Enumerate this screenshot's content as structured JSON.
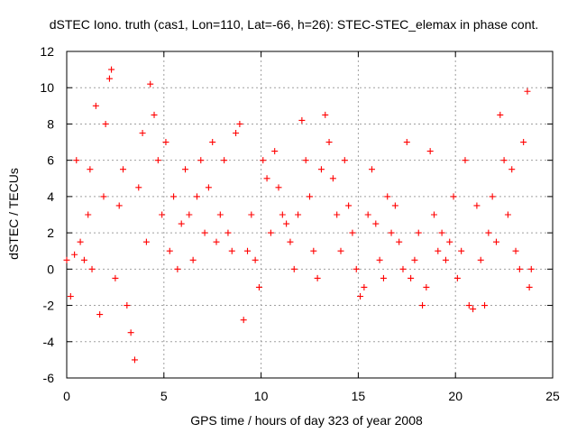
{
  "chart_data": {
    "type": "scatter",
    "title": "dSTEC Iono. truth (cas1, Lon=110, Lat=-66, h=26): STEC-STEC_elemax in phase cont.",
    "xlabel": "GPS time / hours of day 323 of year 2008",
    "ylabel": "dSTEC  / TECUs",
    "xlim": [
      0,
      25
    ],
    "ylim": [
      -6,
      12
    ],
    "x_ticks": [
      0,
      5,
      10,
      15,
      20,
      25
    ],
    "y_ticks": [
      -6,
      -4,
      -2,
      0,
      2,
      4,
      6,
      8,
      10,
      12
    ],
    "x_tick_labels": [
      "0",
      "5",
      "10",
      "15",
      "20",
      "25"
    ],
    "y_tick_labels": [
      "-6",
      "-4",
      "-2",
      "0",
      "2",
      "4",
      "6",
      "8",
      "10",
      "12"
    ],
    "grid": true,
    "marker": "+",
    "color": "#ff0000",
    "series": [
      {
        "values": [
          [
            0.0,
            0.5
          ],
          [
            0.2,
            -1.5
          ],
          [
            0.4,
            0.8
          ],
          [
            0.5,
            6.0
          ],
          [
            0.7,
            1.5
          ],
          [
            0.9,
            0.5
          ],
          [
            1.1,
            3.0
          ],
          [
            1.2,
            5.5
          ],
          [
            1.3,
            0.0
          ],
          [
            1.5,
            9.0
          ],
          [
            1.7,
            -2.5
          ],
          [
            1.9,
            4.0
          ],
          [
            2.0,
            8.0
          ],
          [
            2.2,
            10.5
          ],
          [
            2.3,
            11.0
          ],
          [
            2.5,
            -0.5
          ],
          [
            2.7,
            3.5
          ],
          [
            2.9,
            5.5
          ],
          [
            3.1,
            -2.0
          ],
          [
            3.3,
            -3.5
          ],
          [
            3.5,
            -5.0
          ],
          [
            3.7,
            4.5
          ],
          [
            3.9,
            7.5
          ],
          [
            4.1,
            1.5
          ],
          [
            4.3,
            10.2
          ],
          [
            4.5,
            8.5
          ],
          [
            4.7,
            6.0
          ],
          [
            4.9,
            3.0
          ],
          [
            5.1,
            7.0
          ],
          [
            5.3,
            1.0
          ],
          [
            5.5,
            4.0
          ],
          [
            5.7,
            0.0
          ],
          [
            5.9,
            2.5
          ],
          [
            6.1,
            5.5
          ],
          [
            6.3,
            3.0
          ],
          [
            6.5,
            0.5
          ],
          [
            6.7,
            4.0
          ],
          [
            6.9,
            6.0
          ],
          [
            7.1,
            2.0
          ],
          [
            7.3,
            4.5
          ],
          [
            7.5,
            7.0
          ],
          [
            7.7,
            1.5
          ],
          [
            7.9,
            3.0
          ],
          [
            8.1,
            6.0
          ],
          [
            8.3,
            2.0
          ],
          [
            8.5,
            1.0
          ],
          [
            8.7,
            7.5
          ],
          [
            8.9,
            8.0
          ],
          [
            9.1,
            -2.8
          ],
          [
            9.3,
            1.0
          ],
          [
            9.5,
            3.0
          ],
          [
            9.7,
            0.5
          ],
          [
            9.9,
            -1.0
          ],
          [
            10.1,
            6.0
          ],
          [
            10.3,
            5.0
          ],
          [
            10.5,
            2.0
          ],
          [
            10.7,
            6.5
          ],
          [
            10.9,
            4.5
          ],
          [
            11.1,
            3.0
          ],
          [
            11.3,
            2.5
          ],
          [
            11.5,
            1.5
          ],
          [
            11.7,
            0.0
          ],
          [
            11.9,
            3.0
          ],
          [
            12.1,
            8.2
          ],
          [
            12.3,
            6.0
          ],
          [
            12.5,
            4.0
          ],
          [
            12.7,
            1.0
          ],
          [
            12.9,
            -0.5
          ],
          [
            13.1,
            5.5
          ],
          [
            13.3,
            8.5
          ],
          [
            13.5,
            7.0
          ],
          [
            13.7,
            5.0
          ],
          [
            13.9,
            3.0
          ],
          [
            14.1,
            1.0
          ],
          [
            14.3,
            6.0
          ],
          [
            14.5,
            3.5
          ],
          [
            14.7,
            2.0
          ],
          [
            14.9,
            0.0
          ],
          [
            15.1,
            -1.5
          ],
          [
            15.3,
            -1.0
          ],
          [
            15.5,
            3.0
          ],
          [
            15.7,
            5.5
          ],
          [
            15.9,
            2.5
          ],
          [
            16.1,
            0.5
          ],
          [
            16.3,
            -0.5
          ],
          [
            16.5,
            4.0
          ],
          [
            16.7,
            2.0
          ],
          [
            16.9,
            3.5
          ],
          [
            17.1,
            1.5
          ],
          [
            17.3,
            0.0
          ],
          [
            17.5,
            7.0
          ],
          [
            17.7,
            -0.5
          ],
          [
            17.9,
            0.5
          ],
          [
            18.1,
            2.0
          ],
          [
            18.3,
            -2.0
          ],
          [
            18.5,
            -1.0
          ],
          [
            18.7,
            6.5
          ],
          [
            18.9,
            3.0
          ],
          [
            19.1,
            1.0
          ],
          [
            19.3,
            2.0
          ],
          [
            19.5,
            0.5
          ],
          [
            19.7,
            1.5
          ],
          [
            19.9,
            4.0
          ],
          [
            20.1,
            -0.5
          ],
          [
            20.3,
            1.0
          ],
          [
            20.5,
            6.0
          ],
          [
            20.7,
            -2.0
          ],
          [
            20.9,
            -2.2
          ],
          [
            21.1,
            3.5
          ],
          [
            21.3,
            0.5
          ],
          [
            21.5,
            -2.0
          ],
          [
            21.7,
            2.0
          ],
          [
            21.9,
            4.0
          ],
          [
            22.1,
            1.5
          ],
          [
            22.3,
            8.5
          ],
          [
            22.5,
            6.0
          ],
          [
            22.7,
            3.0
          ],
          [
            22.9,
            5.5
          ],
          [
            23.1,
            1.0
          ],
          [
            23.3,
            0.0
          ],
          [
            23.5,
            7.0
          ],
          [
            23.7,
            9.8
          ],
          [
            23.8,
            -1.0
          ],
          [
            23.9,
            0.0
          ]
        ]
      }
    ]
  }
}
